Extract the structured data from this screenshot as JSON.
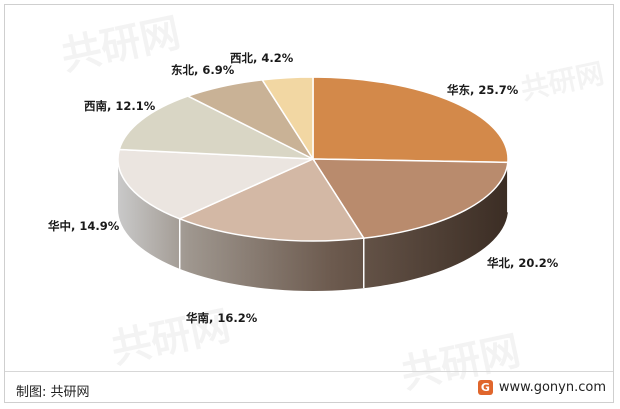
{
  "chart_data": {
    "type": "pie",
    "style": "3d",
    "title": "",
    "slices": [
      {
        "name": "华东",
        "value": 25.7,
        "label": "华东, 25.7%",
        "color": "#d3894a"
      },
      {
        "name": "华北",
        "value": 20.2,
        "label": "华北, 20.2%",
        "color": "#b98b6d"
      },
      {
        "name": "华南",
        "value": 16.2,
        "label": "华南, 16.2%",
        "color": "#d3b8a5"
      },
      {
        "name": "华中",
        "value": 14.9,
        "label": "华中, 14.9%",
        "color": "#ebe5e0"
      },
      {
        "name": "西南",
        "value": 12.1,
        "label": "西南, 12.1%",
        "color": "#d9d6c5"
      },
      {
        "name": "东北",
        "value": 6.9,
        "label": "东北, 6.9%",
        "color": "#c9b296"
      },
      {
        "name": "西北",
        "value": 4.2,
        "label": "西北, 4.2%",
        "color": "#f2d7a3"
      }
    ]
  },
  "footer": {
    "source": "制图: 共研网",
    "website": "www.gonyn.com",
    "logo_letter": "G"
  },
  "watermark": {
    "brand_text": "共研网",
    "url_text": "www.gonyn.com"
  }
}
